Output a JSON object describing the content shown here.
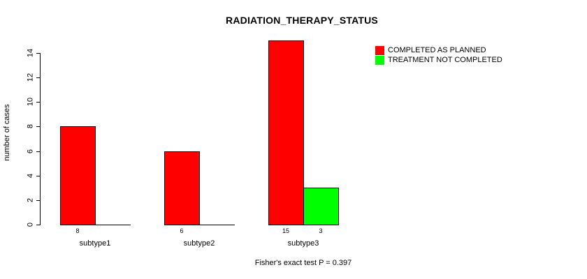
{
  "chart_data": {
    "type": "bar",
    "title": "RADIATION_THERAPY_STATUS",
    "ylabel": "number of cases",
    "xlabel": "",
    "categories": [
      "subtype1",
      "subtype2",
      "subtype3"
    ],
    "series": [
      {
        "name": "COMPLETED AS PLANNED",
        "color": "#ff0000",
        "values": [
          8,
          6,
          15
        ]
      },
      {
        "name": "TREATMENT NOT COMPLETED",
        "color": "#00ff00",
        "values": [
          0,
          0,
          3
        ]
      }
    ],
    "yticks": [
      0,
      2,
      4,
      6,
      8,
      10,
      12,
      14
    ],
    "ylim": [
      0,
      15
    ],
    "bar_value_labels": [
      [
        "8",
        ""
      ],
      [
        "6",
        ""
      ],
      [
        "15",
        "3"
      ]
    ],
    "legend_position": "top-right",
    "grid": false,
    "footnote": "Fisher's exact test P = 0.397",
    "axis_color": "#000000",
    "background_color": "#ffffff"
  }
}
